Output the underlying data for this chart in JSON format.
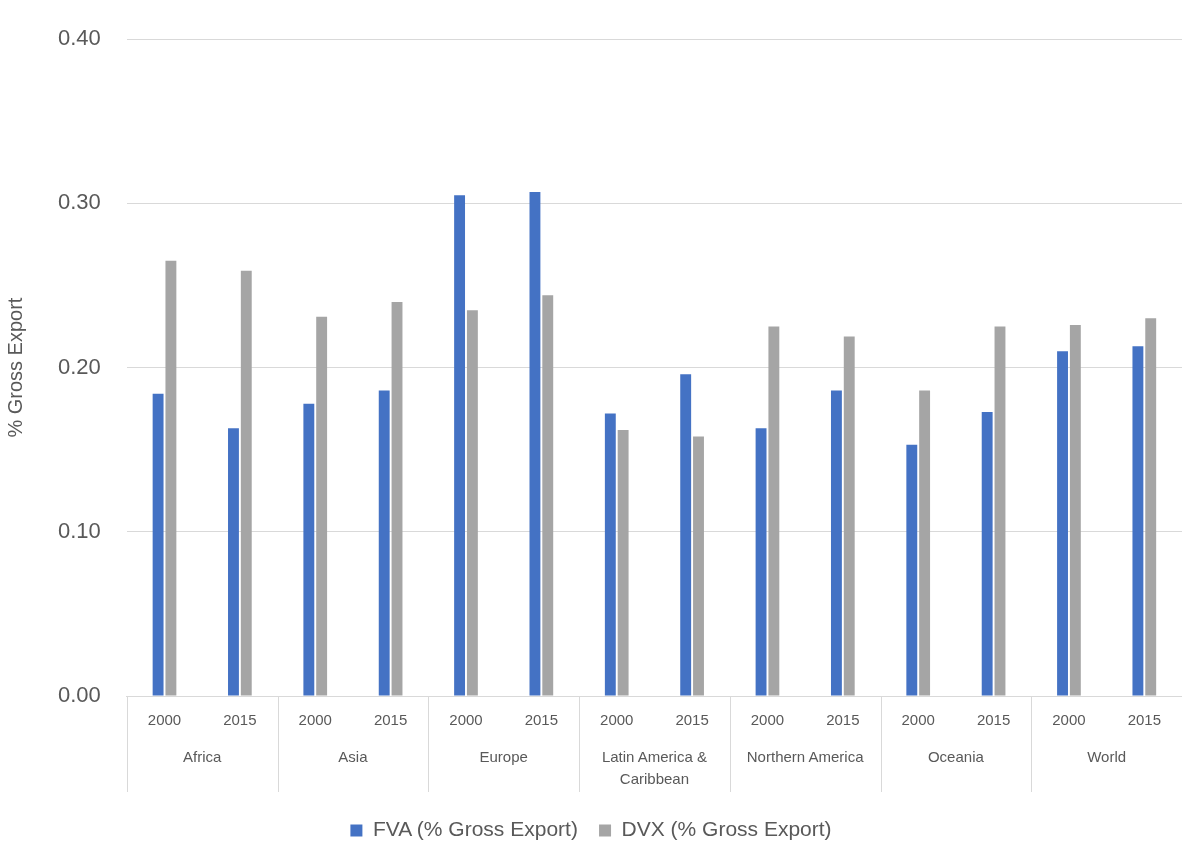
{
  "chart_data": {
    "type": "bar",
    "ylabel": "% Gross Export",
    "categories": [
      "2000",
      "2015",
      "2000",
      "2015",
      "2000",
      "2015",
      "2000",
      "2015",
      "2000",
      "2015",
      "2000",
      "2015",
      "2000",
      "2015"
    ],
    "annotations": [
      "Africa",
      "Asia",
      "Europe",
      "Latin America & Caribbean",
      "Northern America",
      "Oceania",
      "World"
    ],
    "series": [
      {
        "name": "FVA (% Gross Export)",
        "color": "#4472c4",
        "values": [
          0.184,
          0.163,
          0.178,
          0.186,
          0.305,
          0.307,
          0.172,
          0.196,
          0.163,
          0.186,
          0.153,
          0.173,
          0.21,
          0.213
        ]
      },
      {
        "name": "DVX (% Gross Export)",
        "color": "#a5a5a5",
        "values": [
          0.265,
          0.259,
          0.231,
          0.24,
          0.235,
          0.244,
          0.162,
          0.158,
          0.225,
          0.219,
          0.186,
          0.225,
          0.226,
          0.23
        ]
      }
    ],
    "ylim": [
      0,
      0.4
    ],
    "yticks": [
      {
        "value": 0,
        "label": "0.00"
      },
      {
        "value": 0.1,
        "label": "0.10"
      },
      {
        "value": 0.2,
        "label": "0.20"
      },
      {
        "value": 0.3,
        "label": "0.30"
      },
      {
        "value": 0.4,
        "label": "0.40"
      }
    ],
    "grid": "y",
    "legend": "bottom"
  }
}
